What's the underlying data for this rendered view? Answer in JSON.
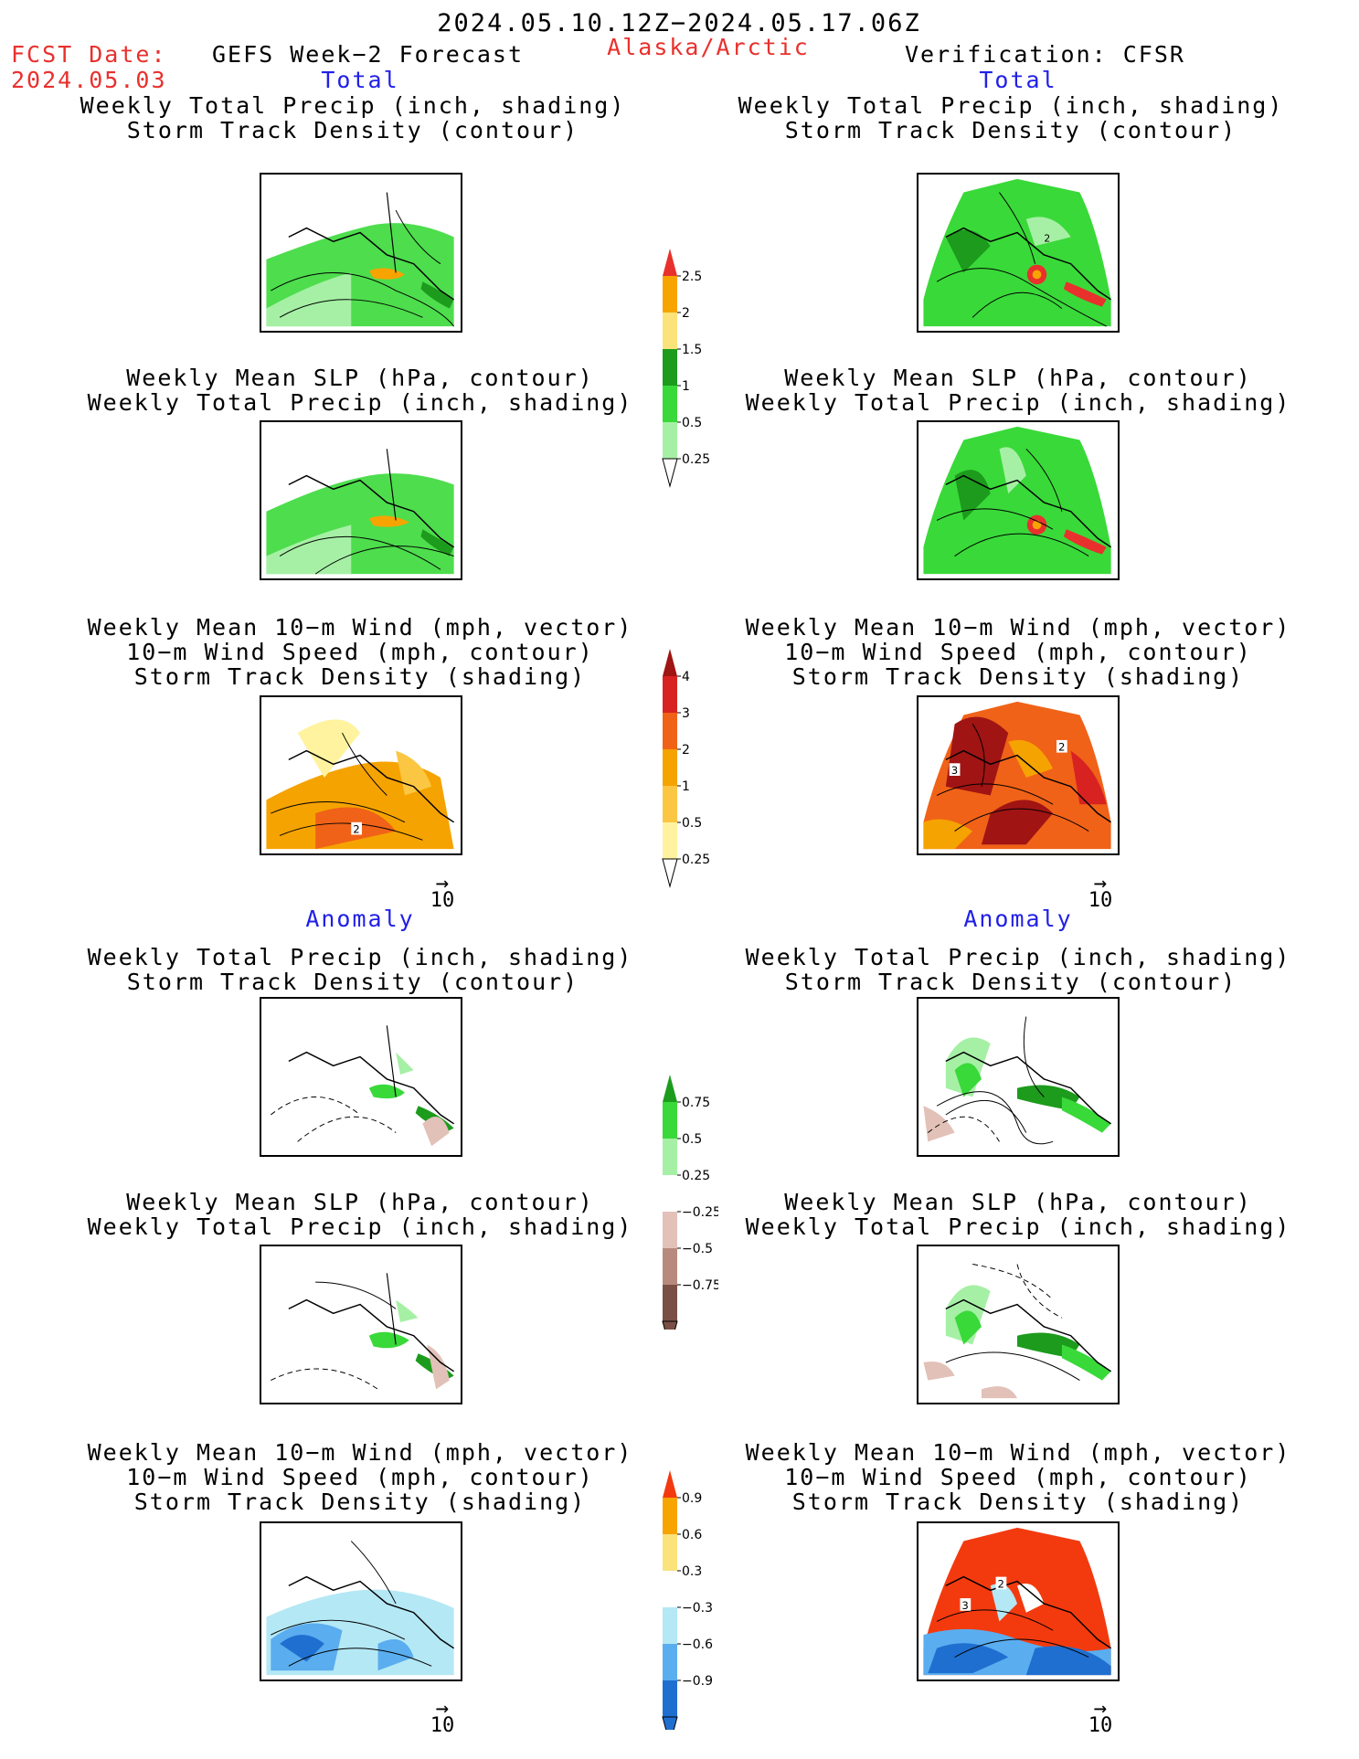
{
  "header": {
    "date_range": "2024.05.10.12Z−2024.05.17.06Z",
    "fcst_label": "FCST Date:",
    "fcst_date": "2024.05.03",
    "left_title": "GEFS Week−2 Forecast",
    "region": "Alaska/Arctic",
    "right_title": "Verification: CFSR"
  },
  "sections": {
    "total": "Total",
    "anomaly": "Anomaly"
  },
  "panel_titles": {
    "precip_track": [
      "Weekly Total Precip (inch, shading)",
      "Storm Track Density (contour)"
    ],
    "slp_precip": [
      "Weekly Mean SLP (hPa, contour)",
      "Weekly Total Precip (inch, shading)"
    ],
    "wind_track": [
      "Weekly Mean 10−m Wind (mph, vector)",
      "10−m Wind Speed (mph, contour)",
      "Storm Track Density (shading)"
    ]
  },
  "vector_ref": "10",
  "colorbars": [
    {
      "id": "precip_total",
      "labels": [
        "2.5",
        "2",
        "1.5",
        "1",
        "0.5",
        "0.25"
      ],
      "colors": [
        "#e8302c",
        "#f7a400",
        "#fbe27a",
        "#1c9b1c",
        "#3ad93a",
        "#a6f0a6"
      ]
    },
    {
      "id": "track_total",
      "labels": [
        "4",
        "3",
        "2",
        "1",
        "0.5",
        "0.25"
      ],
      "colors": [
        "#a01414",
        "#d82222",
        "#f06218",
        "#f5a300",
        "#fbc642",
        "#fff3a0"
      ]
    },
    {
      "id": "precip_anom",
      "labels": [
        "0.75",
        "0.5",
        "0.25",
        "−0.25",
        "−0.5",
        "−0.75"
      ],
      "colors": [
        "#1c9b1c",
        "#3ad93a",
        "#a6f0a6",
        "#ffffff",
        "#e2c2b8",
        "#b88a7e",
        "#7a5046"
      ]
    },
    {
      "id": "track_anom",
      "labels": [
        "0.9",
        "0.6",
        "0.3",
        "−0.3",
        "−0.6",
        "−0.9"
      ],
      "colors": [
        "#f23a0e",
        "#f7a400",
        "#fbe27a",
        "#ffffff",
        "#b4e8f4",
        "#5aaef0",
        "#1f6fd0"
      ]
    }
  ],
  "map_labels": {
    "left_wind_total": "2",
    "right_precip_total": "2",
    "right_wind_total_a": "3",
    "right_wind_total_b": "2",
    "right_wind_anom_a": "3",
    "right_wind_anom_b": "2"
  }
}
